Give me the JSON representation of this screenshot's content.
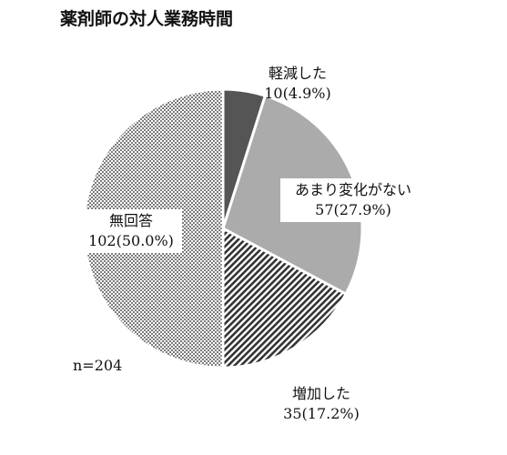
{
  "chart_data": {
    "type": "pie",
    "title": "薬剤師の対人業務時間",
    "slices": [
      {
        "label": "軽減した",
        "count": 10,
        "percent": 4.9,
        "value_text": "10(4.9%)",
        "color": "#555555",
        "pattern": "solid"
      },
      {
        "label": "あまり変化がない",
        "count": 57,
        "percent": 27.9,
        "value_text": "57(27.9%)",
        "color": "#ababab",
        "pattern": "solid"
      },
      {
        "label": "増加した",
        "count": 35,
        "percent": 17.2,
        "value_text": "35(17.2%)",
        "color": "#333333",
        "pattern": "diagonal-stripes"
      },
      {
        "label": "無回答",
        "count": 102,
        "percent": 50.0,
        "value_text": "102(50.0%)",
        "color": "#222222",
        "pattern": "dots"
      }
    ],
    "n_text": "n=204",
    "start_angle_deg": 0,
    "direction": "clockwise",
    "legend": "none"
  }
}
